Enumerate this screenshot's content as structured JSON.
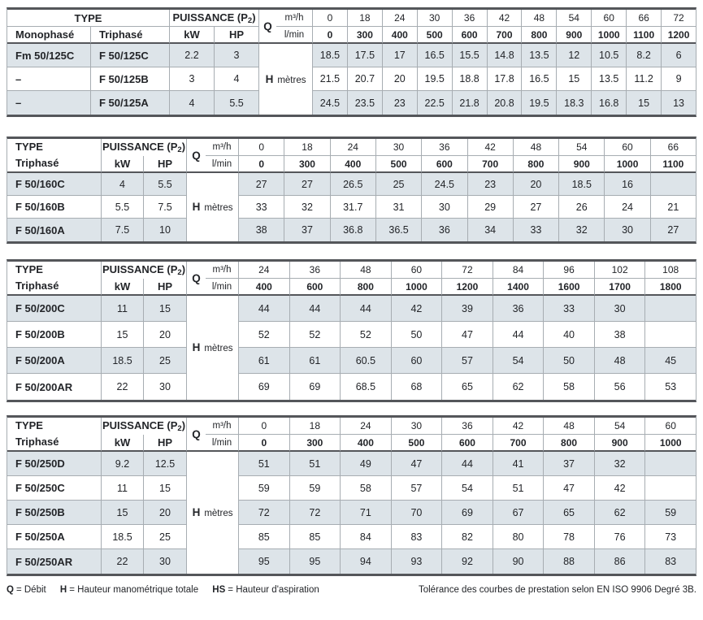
{
  "colors": {
    "row_shade": "#dde4e9",
    "border_thin": "#a7adb2",
    "border_thick": "#54565a",
    "text": "#232529"
  },
  "labels": {
    "type": "TYPE",
    "puissance_prefix": "PUISSANCE (P",
    "puissance_sub": "2",
    "puissance_suffix": ")",
    "kw": "kW",
    "hp": "HP",
    "q": "Q",
    "m3h": "m³/h",
    "lmin": "l/min",
    "h": "H",
    "metres": "mètres"
  },
  "tables": [
    {
      "id": "f50-125",
      "type_subheaders": [
        "Monophasé",
        "Triphasé"
      ],
      "flow_m3h": [
        "0",
        "18",
        "24",
        "30",
        "36",
        "42",
        "48",
        "54",
        "60",
        "66",
        "72"
      ],
      "flow_lmin": [
        "0",
        "300",
        "400",
        "500",
        "600",
        "700",
        "800",
        "900",
        "1000",
        "1100",
        "1200"
      ],
      "rows": [
        {
          "types": [
            "Fm 50/125C",
            "F 50/125C"
          ],
          "kw": "2.2",
          "hp": "3",
          "shaded": true,
          "values": [
            "18.5",
            "17.5",
            "17",
            "16.5",
            "15.5",
            "14.8",
            "13.5",
            "12",
            "10.5",
            "8.2",
            "6"
          ]
        },
        {
          "types": [
            "–",
            "F 50/125B"
          ],
          "kw": "3",
          "hp": "4",
          "shaded": false,
          "values": [
            "21.5",
            "20.7",
            "20",
            "19.5",
            "18.8",
            "17.8",
            "16.5",
            "15",
            "13.5",
            "11.2",
            "9"
          ]
        },
        {
          "types": [
            "–",
            "F 50/125A"
          ],
          "kw": "4",
          "hp": "5.5",
          "shaded": true,
          "values": [
            "24.5",
            "23.5",
            "23",
            "22.5",
            "21.8",
            "20.8",
            "19.5",
            "18.3",
            "16.8",
            "15",
            "13"
          ]
        }
      ]
    },
    {
      "id": "f50-160",
      "type_subheaders": [
        "Triphasé"
      ],
      "flow_m3h": [
        "0",
        "18",
        "24",
        "30",
        "36",
        "42",
        "48",
        "54",
        "60",
        "66"
      ],
      "flow_lmin": [
        "0",
        "300",
        "400",
        "500",
        "600",
        "700",
        "800",
        "900",
        "1000",
        "1100"
      ],
      "rows": [
        {
          "types": [
            "F 50/160C"
          ],
          "kw": "4",
          "hp": "5.5",
          "shaded": true,
          "values": [
            "27",
            "27",
            "26.5",
            "25",
            "24.5",
            "23",
            "20",
            "18.5",
            "16",
            ""
          ]
        },
        {
          "types": [
            "F 50/160B"
          ],
          "kw": "5.5",
          "hp": "7.5",
          "shaded": false,
          "values": [
            "33",
            "32",
            "31.7",
            "31",
            "30",
            "29",
            "27",
            "26",
            "24",
            "21"
          ]
        },
        {
          "types": [
            "F 50/160A"
          ],
          "kw": "7.5",
          "hp": "10",
          "shaded": true,
          "values": [
            "38",
            "37",
            "36.8",
            "36.5",
            "36",
            "34",
            "33",
            "32",
            "30",
            "27"
          ]
        }
      ]
    },
    {
      "id": "f50-200",
      "type_subheaders": [
        "Triphasé"
      ],
      "flow_m3h": [
        "24",
        "36",
        "48",
        "60",
        "72",
        "84",
        "96",
        "102",
        "108"
      ],
      "flow_lmin": [
        "400",
        "600",
        "800",
        "1000",
        "1200",
        "1400",
        "1600",
        "1700",
        "1800"
      ],
      "rows": [
        {
          "types": [
            "F 50/200C"
          ],
          "kw": "11",
          "hp": "15",
          "shaded": true,
          "values": [
            "44",
            "44",
            "44",
            "42",
            "39",
            "36",
            "33",
            "30",
            ""
          ]
        },
        {
          "types": [
            "F 50/200B"
          ],
          "kw": "15",
          "hp": "20",
          "shaded": false,
          "values": [
            "52",
            "52",
            "52",
            "50",
            "47",
            "44",
            "40",
            "38",
            ""
          ]
        },
        {
          "types": [
            "F 50/200A"
          ],
          "kw": "18.5",
          "hp": "25",
          "shaded": true,
          "values": [
            "61",
            "61",
            "60.5",
            "60",
            "57",
            "54",
            "50",
            "48",
            "45"
          ]
        },
        {
          "types": [
            "F 50/200AR"
          ],
          "kw": "22",
          "hp": "30",
          "shaded": false,
          "values": [
            "69",
            "69",
            "68.5",
            "68",
            "65",
            "62",
            "58",
            "56",
            "53"
          ]
        }
      ]
    },
    {
      "id": "f50-250",
      "type_subheaders": [
        "Triphasé"
      ],
      "flow_m3h": [
        "0",
        "18",
        "24",
        "30",
        "36",
        "42",
        "48",
        "54",
        "60"
      ],
      "flow_lmin": [
        "0",
        "300",
        "400",
        "500",
        "600",
        "700",
        "800",
        "900",
        "1000"
      ],
      "rows": [
        {
          "types": [
            "F 50/250D"
          ],
          "kw": "9.2",
          "hp": "12.5",
          "shaded": true,
          "values": [
            "51",
            "51",
            "49",
            "47",
            "44",
            "41",
            "37",
            "32",
            ""
          ]
        },
        {
          "types": [
            "F 50/250C"
          ],
          "kw": "11",
          "hp": "15",
          "shaded": false,
          "values": [
            "59",
            "59",
            "58",
            "57",
            "54",
            "51",
            "47",
            "42",
            ""
          ]
        },
        {
          "types": [
            "F 50/250B"
          ],
          "kw": "15",
          "hp": "20",
          "shaded": true,
          "values": [
            "72",
            "72",
            "71",
            "70",
            "69",
            "67",
            "65",
            "62",
            "59"
          ]
        },
        {
          "types": [
            "F 50/250A"
          ],
          "kw": "18.5",
          "hp": "25",
          "shaded": false,
          "values": [
            "85",
            "85",
            "84",
            "83",
            "82",
            "80",
            "78",
            "76",
            "73"
          ]
        },
        {
          "types": [
            "F 50/250AR"
          ],
          "kw": "22",
          "hp": "30",
          "shaded": true,
          "values": [
            "95",
            "95",
            "94",
            "93",
            "92",
            "90",
            "88",
            "86",
            "83"
          ]
        }
      ]
    }
  ],
  "footer": {
    "legend": [
      {
        "symbol": "Q",
        "text": "= Débit"
      },
      {
        "symbol": "H",
        "text": "= Hauteur manométrique totale"
      },
      {
        "symbol": "HS",
        "text": "= Hauteur d'aspiration"
      }
    ],
    "tolerance": "Tolérance des courbes de prestation selon EN ISO 9906 Degré 3B."
  }
}
